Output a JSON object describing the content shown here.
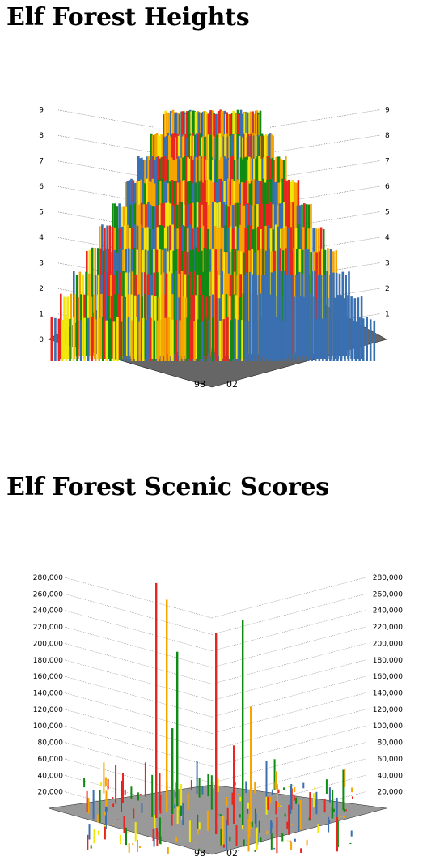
{
  "page": {
    "title_heights": "Elf Forest Heights",
    "title_scenic": "Elf Forest Scenic Scores"
  },
  "colors": {
    "palette": [
      "#e8251e",
      "#f2e70c",
      "#0f8a12",
      "#f5a400",
      "#3a6fb0",
      "#8fb832"
    ],
    "grid": "#777777"
  },
  "chart_data": [
    {
      "type": "bar",
      "subtype": "3d-grid",
      "title": "",
      "y_ticks": [
        0,
        1,
        2,
        3,
        4,
        5,
        6,
        7,
        8,
        9
      ],
      "y_tick_labels": [
        "0",
        "1",
        "2",
        "3",
        "4",
        "5",
        "6",
        "7",
        "8",
        "9"
      ],
      "ylim": [
        0,
        9
      ],
      "x_tick_labels": [
        "98",
        "02"
      ],
      "grid_rows": 99,
      "grid_cols": 99,
      "shape": "stepped pyramid",
      "right_quadrant_color": "#3a6fb0"
    },
    {
      "type": "bar",
      "subtype": "3d-grid",
      "title": "",
      "y_ticks": [
        0,
        20000,
        40000,
        60000,
        80000,
        100000,
        120000,
        140000,
        160000,
        180000,
        200000,
        220000,
        240000,
        260000,
        280000
      ],
      "y_tick_labels": [
        "",
        "20,000",
        "40,000",
        "60,000",
        "80,000",
        "100,000",
        "120,000",
        "140,000",
        "160,000",
        "180,000",
        "200,000",
        "220,000",
        "240,000",
        "260,000",
        "280,000"
      ],
      "ylim": [
        0,
        280000
      ],
      "x_tick_labels": [
        "98",
        "02"
      ],
      "grid_rows": 99,
      "grid_cols": 99,
      "notable_values": [
        {
          "color": "#e8251e",
          "value": 285000
        },
        {
          "color": "#f5a400",
          "value": 258000
        },
        {
          "color": "#e8251e",
          "value": 244000
        },
        {
          "color": "#0f8a12",
          "value": 248000
        },
        {
          "color": "#0f8a12",
          "value": 187000
        },
        {
          "color": "#f5a400",
          "value": 140000
        },
        {
          "color": "#0f8a12",
          "value": 104000
        },
        {
          "color": "#e8251e",
          "value": 95000
        }
      ]
    }
  ]
}
